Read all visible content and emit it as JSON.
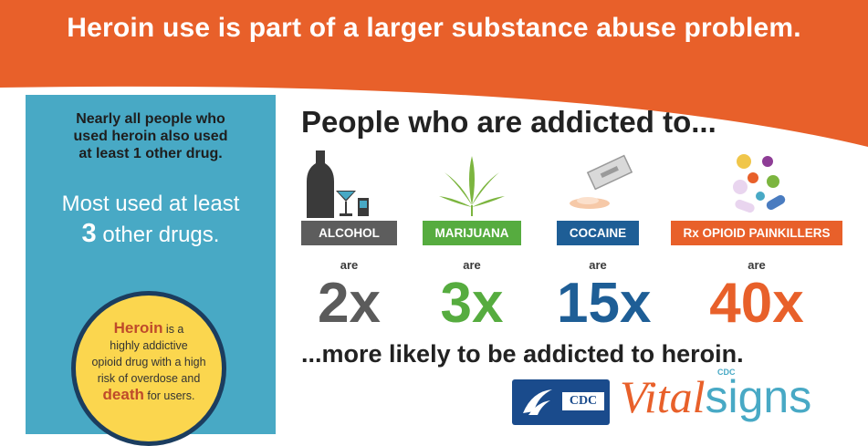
{
  "banner": {
    "title": "Heroin use is part of a larger substance abuse problem."
  },
  "sidebar": {
    "text1": [
      "Nearly all people who",
      "used heroin also used",
      "at least 1 other drug."
    ],
    "text2_line1": "Most used at least",
    "text2_num": "3",
    "text2_rest": " other drugs.",
    "circle": {
      "key1": "Heroin",
      "t1": " is a",
      "t2": "highly addictive",
      "t3": "opioid drug with a high",
      "t4": "risk of overdose and",
      "key2": "death",
      "t5": " for users."
    }
  },
  "main": {
    "headline": "People who are addicted to...",
    "substances": [
      {
        "label": "ALCOHOL",
        "are": "are",
        "multiplier": "2x",
        "label_color": "#5d5d5d",
        "mult_color": "#5b5b5b",
        "icon": "alcohol-icon"
      },
      {
        "label": "MARIJUANA",
        "are": "are",
        "multiplier": "3x",
        "label_color": "#56ac3f",
        "mult_color": "#56ac3f",
        "icon": "marijuana-leaf-icon"
      },
      {
        "label": "COCAINE",
        "are": "are",
        "multiplier": "15x",
        "label_color": "#1e5e96",
        "mult_color": "#1e5e96",
        "icon": "razor-powder-icon"
      },
      {
        "label": "Rx OPIOID PAINKILLERS",
        "are": "are",
        "multiplier": "40x",
        "label_color": "#e8602a",
        "mult_color": "#e8602a",
        "icon": "pills-icon"
      }
    ],
    "bottom": "...more likely to be addicted to heroin."
  },
  "footer": {
    "cdc_text": "CDC",
    "vital_a": "Vital",
    "vital_b": "signs",
    "vital_cdc": "CDC"
  },
  "colors": {
    "orange": "#e8602a",
    "teal": "#48a9c5",
    "yellow": "#fbd64e",
    "navy": "#1b3d5f"
  }
}
